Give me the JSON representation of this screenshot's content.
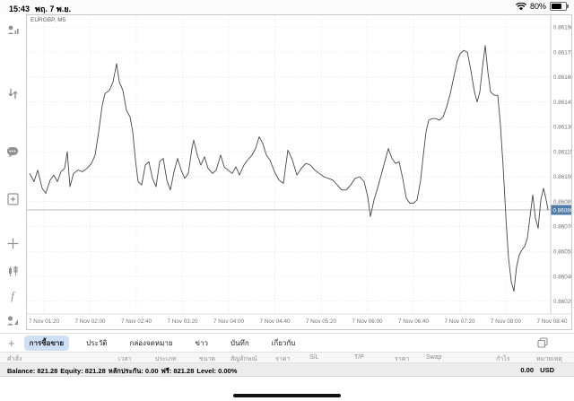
{
  "status_bar": {
    "time": "15:43",
    "date": "พฤ. 7 พ.ย.",
    "battery_percent": "80%"
  },
  "sidebar": {
    "icons": [
      "quotes",
      "trade-levels",
      "chat",
      "new-order",
      "crosshair",
      "chart-type",
      "indicators",
      "objects"
    ],
    "timeframe": "M5"
  },
  "chart": {
    "symbol_label": "EURGBP, M5",
    "current_price_label": "0.86080",
    "accent_price_box_color": "#527CA8",
    "line_color": "#474747",
    "grid_color": "#dedede",
    "axis_text_color": "#737373"
  },
  "chart_data": {
    "type": "line",
    "title": "EURGBP M5 line chart",
    "symbol": "EURGBP",
    "timeframe": "M5",
    "current_price": 0.8608,
    "ylim": [
      0.86018,
      0.86196
    ],
    "y_ticks": [
      "0.86190",
      "0.86175",
      "0.86160",
      "0.86145",
      "0.86130",
      "0.86115",
      "0.86100",
      "0.86085",
      "0.86070",
      "0.86055",
      "0.86040",
      "0.86025"
    ],
    "x_ticks": [
      "7 Nov 01:20",
      "7 Nov 02:00",
      "7 Nov 02:40",
      "7 Nov 03:20",
      "7 Nov 04:00",
      "7 Nov 04:40",
      "7 Nov 05:20",
      "7 Nov 06:00",
      "7 Nov 06:40",
      "7 Nov 07:20",
      "7 Nov 08:00",
      "7 Nov 08:40"
    ],
    "grid": "dotted",
    "points": [
      [
        32,
        0.86102
      ],
      [
        37,
        0.86097
      ],
      [
        41,
        0.86104
      ],
      [
        46,
        0.86093
      ],
      [
        50,
        0.8609
      ],
      [
        55,
        0.86098
      ],
      [
        59,
        0.86101
      ],
      [
        63,
        0.86097
      ],
      [
        67,
        0.86103
      ],
      [
        71,
        0.86105
      ],
      [
        74,
        0.86115
      ],
      [
        77,
        0.86094
      ],
      [
        81,
        0.86102
      ],
      [
        86,
        0.86104
      ],
      [
        91,
        0.86103
      ],
      [
        96,
        0.86105
      ],
      [
        101,
        0.86108
      ],
      [
        105,
        0.86113
      ],
      [
        109,
        0.86127
      ],
      [
        113,
        0.86143
      ],
      [
        116,
        0.8615
      ],
      [
        121,
        0.86152
      ],
      [
        125,
        0.86157
      ],
      [
        129,
        0.86168
      ],
      [
        132,
        0.86157
      ],
      [
        136,
        0.86152
      ],
      [
        140,
        0.8614
      ],
      [
        144,
        0.86136
      ],
      [
        147,
        0.86127
      ],
      [
        150,
        0.8611
      ],
      [
        153,
        0.86097
      ],
      [
        157,
        0.86095
      ],
      [
        161,
        0.86107
      ],
      [
        165,
        0.86109
      ],
      [
        169,
        0.86099
      ],
      [
        173,
        0.86094
      ],
      [
        177,
        0.86109
      ],
      [
        181,
        0.86111
      ],
      [
        185,
        0.86098
      ],
      [
        189,
        0.86092
      ],
      [
        193,
        0.86103
      ],
      [
        197,
        0.86111
      ],
      [
        201,
        0.86104
      ],
      [
        205,
        0.86099
      ],
      [
        209,
        0.86102
      ],
      [
        213,
        0.86117
      ],
      [
        215,
        0.86122
      ],
      [
        219,
        0.86113
      ],
      [
        223,
        0.86107
      ],
      [
        227,
        0.86112
      ],
      [
        231,
        0.86105
      ],
      [
        236,
        0.86102
      ],
      [
        240,
        0.86104
      ],
      [
        245,
        0.86113
      ],
      [
        249,
        0.86106
      ],
      [
        253,
        0.86104
      ],
      [
        258,
        0.86102
      ],
      [
        262,
        0.86106
      ],
      [
        266,
        0.86101
      ],
      [
        271,
        0.86107
      ],
      [
        275,
        0.8611
      ],
      [
        280,
        0.86113
      ],
      [
        284,
        0.86117
      ],
      [
        288,
        0.86124
      ],
      [
        292,
        0.8612
      ],
      [
        296,
        0.86113
      ],
      [
        300,
        0.8611
      ],
      [
        305,
        0.86103
      ],
      [
        310,
        0.86098
      ],
      [
        315,
        0.86096
      ],
      [
        320,
        0.86116
      ],
      [
        325,
        0.8611
      ],
      [
        330,
        0.86101
      ],
      [
        335,
        0.86105
      ],
      [
        340,
        0.86108
      ],
      [
        345,
        0.86107
      ],
      [
        350,
        0.86104
      ],
      [
        355,
        0.86102
      ],
      [
        360,
        0.861
      ],
      [
        365,
        0.86099
      ],
      [
        370,
        0.86098
      ],
      [
        375,
        0.86095
      ],
      [
        380,
        0.86092
      ],
      [
        385,
        0.86092
      ],
      [
        390,
        0.86095
      ],
      [
        395,
        0.86099
      ],
      [
        400,
        0.861
      ],
      [
        405,
        0.86097
      ],
      [
        409,
        0.86088
      ],
      [
        412,
        0.86076
      ],
      [
        416,
        0.86086
      ],
      [
        420,
        0.86093
      ],
      [
        424,
        0.86101
      ],
      [
        428,
        0.86109
      ],
      [
        432,
        0.86117
      ],
      [
        436,
        0.86111
      ],
      [
        440,
        0.86108
      ],
      [
        444,
        0.86109
      ],
      [
        448,
        0.86099
      ],
      [
        452,
        0.86087
      ],
      [
        456,
        0.86084
      ],
      [
        460,
        0.86084
      ],
      [
        464,
        0.86086
      ],
      [
        468,
        0.86098
      ],
      [
        471,
        0.86113
      ],
      [
        474,
        0.86127
      ],
      [
        477,
        0.86134
      ],
      [
        481,
        0.86135
      ],
      [
        485,
        0.86135
      ],
      [
        489,
        0.86134
      ],
      [
        493,
        0.86136
      ],
      [
        497,
        0.86142
      ],
      [
        501,
        0.8615
      ],
      [
        505,
        0.8616
      ],
      [
        509,
        0.8617
      ],
      [
        512,
        0.86174
      ],
      [
        516,
        0.86176
      ],
      [
        520,
        0.86175
      ],
      [
        524,
        0.86164
      ],
      [
        528,
        0.86151
      ],
      [
        531,
        0.86145
      ],
      [
        534,
        0.86151
      ],
      [
        537,
        0.86166
      ],
      [
        540,
        0.86179
      ],
      [
        543,
        0.86163
      ],
      [
        546,
        0.86151
      ],
      [
        550,
        0.86149
      ],
      [
        554,
        0.86149
      ],
      [
        557,
        0.86131
      ],
      [
        560,
        0.86106
      ],
      [
        563,
        0.86076
      ],
      [
        566,
        0.86051
      ],
      [
        569,
        0.86037
      ],
      [
        572,
        0.86031
      ],
      [
        575,
        0.86046
      ],
      [
        578,
        0.86053
      ],
      [
        581,
        0.86056
      ],
      [
        584,
        0.86058
      ],
      [
        587,
        0.86063
      ],
      [
        590,
        0.86076
      ],
      [
        593,
        0.86089
      ],
      [
        596,
        0.86075
      ],
      [
        599,
        0.86069
      ],
      [
        602,
        0.86086
      ],
      [
        605,
        0.86093
      ],
      [
        608,
        0.86086
      ],
      [
        610,
        0.8608
      ]
    ]
  },
  "bottom_tabs": {
    "add_label": "+",
    "tabs": [
      {
        "label": "การซื้อขาย",
        "selected": true
      },
      {
        "label": "ประวัติ",
        "selected": false
      },
      {
        "label": "กล่องจดหมาย",
        "selected": false
      },
      {
        "label": "ข่าว",
        "selected": false
      },
      {
        "label": "บันทึก",
        "selected": false
      },
      {
        "label": "เกี่ยวกับ",
        "selected": false
      }
    ]
  },
  "orders_table": {
    "columns": [
      "คำสั่ง",
      "เวลา",
      "ประเภท",
      "ขนาด",
      "สัญลักษณ์",
      "ราคา",
      "S/L",
      "T/P",
      "ราคา",
      "Swap",
      "กำไร",
      "หมายเหตุ"
    ]
  },
  "account_bar": {
    "segments": [
      {
        "label": "Balance:",
        "value": "821.28"
      },
      {
        "label": "Equity:",
        "value": "821.28"
      },
      {
        "label": "หลักประกัน:",
        "value": "0.00"
      },
      {
        "label": "ฟรี:",
        "value": "821.28"
      },
      {
        "label": "Level:",
        "value": "0.00%"
      }
    ],
    "profit": "0.00",
    "currency": "USD"
  }
}
